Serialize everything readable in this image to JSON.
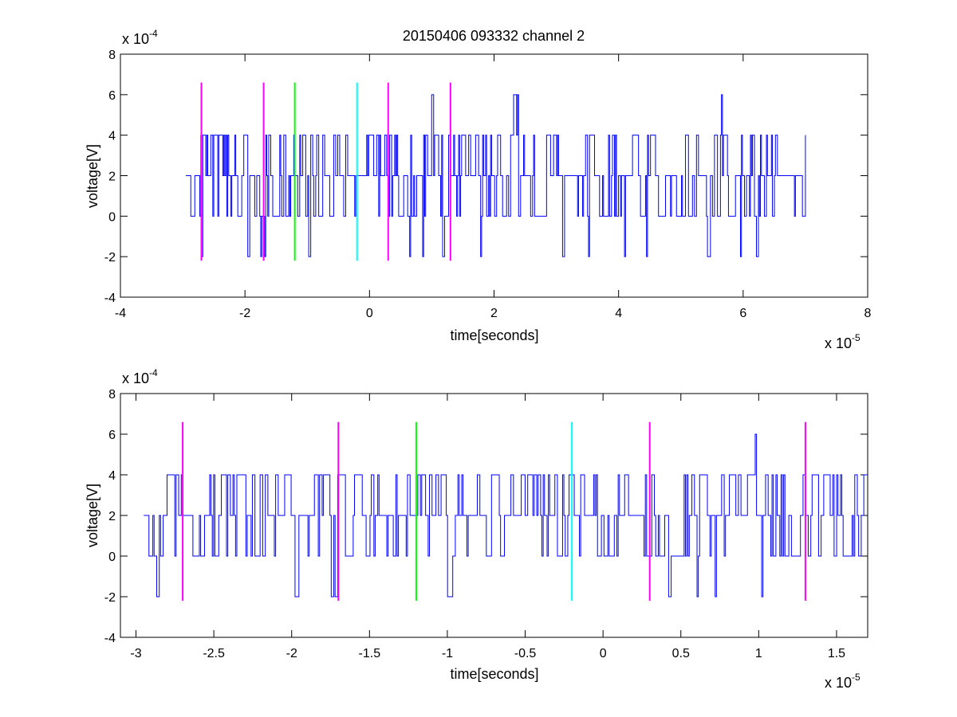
{
  "figure": {
    "title": "20150406 093332 channel 2"
  },
  "chart_data": [
    {
      "type": "line",
      "name": "top-panel",
      "xlabel": "time[seconds]",
      "ylabel": "voltage[V]",
      "xlim": [
        -4,
        8
      ],
      "ylim": [
        -4,
        8
      ],
      "xticks": [
        -4,
        -2,
        0,
        2,
        4,
        6,
        8
      ],
      "xtick_labels": [
        "-4",
        "-2",
        "0",
        "2",
        "4",
        "6",
        "8"
      ],
      "yticks": [
        -4,
        -2,
        0,
        2,
        4,
        6,
        8
      ],
      "ytick_labels": [
        "-4",
        "-2",
        "0",
        "2",
        "4",
        "6",
        "8"
      ],
      "x_exponent": "x 10",
      "x_exponent_power": "-5",
      "y_exponent": "x 10",
      "y_exponent_power": "-4",
      "grid": false,
      "signal": {
        "color": "#0000ff",
        "x_range": [
          -2.95,
          7.0
        ],
        "levels": [
          -2,
          0,
          2,
          4,
          6
        ],
        "baseline": 2,
        "spikes": [
          {
            "x": -2.7,
            "y": -2
          },
          {
            "x": -1.95,
            "y": -2
          },
          {
            "x": -1.75,
            "y": -2
          },
          {
            "x": -1.68,
            "y": -2
          },
          {
            "x": -0.98,
            "y": -2
          },
          {
            "x": 0.65,
            "y": -2
          },
          {
            "x": 0.85,
            "y": -2
          },
          {
            "x": 1.18,
            "y": -2
          },
          {
            "x": 1.78,
            "y": -2
          },
          {
            "x": 3.1,
            "y": -2
          },
          {
            "x": 3.52,
            "y": -2
          },
          {
            "x": 4.1,
            "y": -2
          },
          {
            "x": 4.45,
            "y": -2
          },
          {
            "x": 5.42,
            "y": -2
          },
          {
            "x": 5.95,
            "y": -2
          },
          {
            "x": 6.22,
            "y": -2
          },
          {
            "x": 1.0,
            "y": 6
          },
          {
            "x": 2.32,
            "y": 6
          },
          {
            "x": 2.38,
            "y": 6
          },
          {
            "x": 5.65,
            "y": 6
          }
        ]
      },
      "markers": [
        {
          "x": -2.7,
          "color": "#ff00ff",
          "y": [
            -2.2,
            6.6
          ]
        },
        {
          "x": -1.7,
          "color": "#ff00ff",
          "y": [
            -2.2,
            6.6
          ]
        },
        {
          "x": -1.2,
          "color": "#00ff00",
          "y": [
            -2.2,
            6.6
          ]
        },
        {
          "x": -0.2,
          "color": "#00ffff",
          "y": [
            -2.2,
            6.6
          ]
        },
        {
          "x": 0.3,
          "color": "#ff00ff",
          "y": [
            -2.2,
            6.6
          ]
        },
        {
          "x": 1.3,
          "color": "#ff00ff",
          "y": [
            -2.2,
            6.6
          ]
        }
      ]
    },
    {
      "type": "line",
      "name": "bottom-panel",
      "xlabel": "time[seconds]",
      "ylabel": "voltage[V]",
      "xlim": [
        -3.1,
        1.7
      ],
      "ylim": [
        -4,
        8
      ],
      "xticks": [
        -3,
        -2.5,
        -2,
        -1.5,
        -1,
        -0.5,
        0,
        0.5,
        1,
        1.5
      ],
      "xtick_labels": [
        "-3",
        "-2.5",
        "-2",
        "-1.5",
        "-1",
        "-0.5",
        "0",
        "0.5",
        "1",
        "1.5"
      ],
      "yticks": [
        -4,
        -2,
        0,
        2,
        4,
        6,
        8
      ],
      "ytick_labels": [
        "-4",
        "-2",
        "0",
        "2",
        "4",
        "6",
        "8"
      ],
      "x_exponent": "x 10",
      "x_exponent_power": "-5",
      "y_exponent": "x 10",
      "y_exponent_power": "-4",
      "grid": false,
      "signal": {
        "color": "#0000ff",
        "x_range": [
          -2.95,
          1.7
        ],
        "levels": [
          -2,
          0,
          2,
          4,
          6
        ],
        "baseline": 2,
        "spikes": [
          {
            "x": -2.87,
            "y": -2
          },
          {
            "x": -1.98,
            "y": -2
          },
          {
            "x": -1.75,
            "y": -2
          },
          {
            "x": -1.72,
            "y": -2
          },
          {
            "x": -1.0,
            "y": -2
          },
          {
            "x": 0.42,
            "y": -2
          },
          {
            "x": 0.6,
            "y": -2
          },
          {
            "x": 0.72,
            "y": -2
          },
          {
            "x": 1.02,
            "y": -2
          },
          {
            "x": 0.98,
            "y": 6
          }
        ]
      },
      "markers": [
        {
          "x": -2.7,
          "color": "#ff00ff",
          "y": [
            -2.2,
            6.6
          ]
        },
        {
          "x": -1.7,
          "color": "#ff00ff",
          "y": [
            -2.2,
            6.6
          ]
        },
        {
          "x": -1.2,
          "color": "#00ff00",
          "y": [
            -2.2,
            6.6
          ]
        },
        {
          "x": -0.2,
          "color": "#00ffff",
          "y": [
            -2.2,
            6.6
          ]
        },
        {
          "x": 0.3,
          "color": "#ff00ff",
          "y": [
            -2.2,
            6.6
          ]
        },
        {
          "x": 1.3,
          "color": "#ff00ff",
          "y": [
            -2.2,
            6.6
          ]
        }
      ]
    }
  ]
}
